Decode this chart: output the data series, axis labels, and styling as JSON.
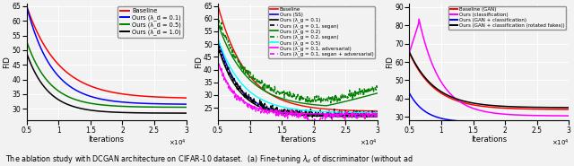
{
  "fig_width": 6.4,
  "fig_height": 1.85,
  "dpi": 100,
  "background_color": "#f2f2f2",
  "caption": "The ablation study with DCGAN architecture on CIFAR-10 dataset.  (a) Fine-tuning λ_d of discriminator (without ad",
  "subplot1": {
    "ylabel": "FID",
    "xlabel": "Iterations",
    "xlim": [
      5000,
      30000
    ],
    "ylim": [
      26,
      66
    ],
    "yticks": [
      30,
      35,
      40,
      45,
      50,
      55,
      60,
      65
    ],
    "legend": [
      "Baseline",
      "Ours (λ_d = 0.1)",
      "Ours (λ_d = 0.5)",
      "Ours (λ_d = 1.0)"
    ],
    "colors": [
      "red",
      "blue",
      "green",
      "black"
    ]
  },
  "subplot2": {
    "ylabel": "FID",
    "xlabel": "Iterations",
    "xlim": [
      5000,
      30000
    ],
    "ylim": [
      20,
      66
    ],
    "yticks": [
      25,
      30,
      35,
      40,
      45,
      50,
      55,
      60,
      65
    ],
    "legend": [
      "Baseline",
      "Ours (SS)",
      "Ours (λ_g = 0.1)",
      "Ours (λ_g = 0.1, segan)",
      "Ours (λ_g = 0.2)",
      "Ours (λ_g = 0.2, segan)",
      "Ours (λ_g = 0.5)",
      "Ours (λ_g = 0.1, adversarial)",
      "Ours (λ_g = 0.1, segan + adversarial)"
    ],
    "colors": [
      "red",
      "blue",
      "black",
      "black",
      "green",
      "green",
      "cyan",
      "magenta",
      "magenta"
    ],
    "linestyles": [
      "-",
      "-",
      "-",
      "--",
      "-",
      "--",
      "-",
      "-",
      "--"
    ]
  },
  "subplot3": {
    "ylabel": "FID",
    "xlabel": "Iterations",
    "xlim": [
      5000,
      30000
    ],
    "ylim": [
      28,
      92
    ],
    "yticks": [
      30,
      40,
      50,
      60,
      70,
      80,
      90
    ],
    "legend": [
      "Baseline (GAN)",
      "Ours (classification)",
      "Ours (GAN + classification)",
      "Ours (GAN + classification (rotated fakes))"
    ],
    "colors": [
      "red",
      "magenta",
      "blue",
      "black"
    ]
  }
}
